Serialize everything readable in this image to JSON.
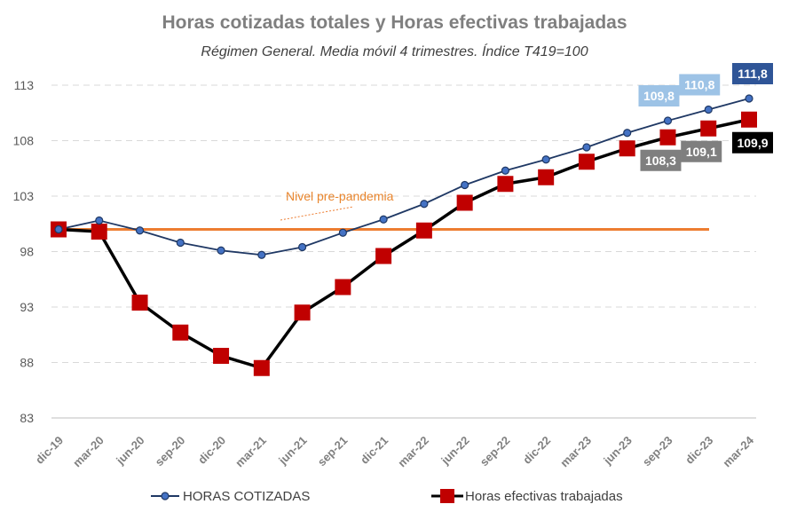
{
  "chart_data": {
    "type": "line",
    "title": "Horas cotizadas totales y Horas efectivas trabajadas",
    "subtitle": "Régimen General. Media móvil 4 trimestres. Índice T419=100",
    "categories": [
      "dic-19",
      "mar-20",
      "jun-20",
      "sep-20",
      "dic-20",
      "mar-21",
      "jun-21",
      "sep-21",
      "dic-21",
      "mar-22",
      "jun-22",
      "sep-22",
      "dic-22",
      "mar-23",
      "jun-23",
      "sep-23",
      "dic-23",
      "mar-24"
    ],
    "ylim": [
      83,
      113
    ],
    "yticks": [
      83,
      88,
      93,
      98,
      103,
      108,
      113
    ],
    "grid": true,
    "legend_position": "bottom",
    "series": [
      {
        "name": "HORAS COTIZADAS",
        "color": "#1f3864",
        "marker_fill": "#4472c4",
        "values": [
          100.0,
          100.8,
          99.9,
          98.8,
          98.1,
          97.7,
          98.4,
          99.7,
          100.9,
          102.3,
          104.0,
          105.3,
          106.3,
          107.4,
          108.7,
          109.8,
          110.8,
          111.8
        ]
      },
      {
        "name": "Horas efectivas trabajadas",
        "color": "#000000",
        "marker_fill": "#c00000",
        "values": [
          100.0,
          99.8,
          93.4,
          90.7,
          88.6,
          87.5,
          92.5,
          94.8,
          97.6,
          99.9,
          102.4,
          104.1,
          104.7,
          106.1,
          107.3,
          108.3,
          109.1,
          109.9
        ]
      }
    ],
    "reference_line": {
      "label": "Nivel pre-pandemia",
      "value": 100,
      "color": "#ed7d31"
    },
    "data_labels": [
      {
        "series": 0,
        "index": 15,
        "text": "109,8",
        "bg": "#9dc3e6"
      },
      {
        "series": 0,
        "index": 16,
        "text": "110,8",
        "bg": "#9dc3e6"
      },
      {
        "series": 0,
        "index": 17,
        "text": "111,8",
        "bg": "#2f5597"
      },
      {
        "series": 1,
        "index": 15,
        "text": "108,3",
        "bg": "#7f7f7f"
      },
      {
        "series": 1,
        "index": 16,
        "text": "109,1",
        "bg": "#7f7f7f"
      },
      {
        "series": 1,
        "index": 17,
        "text": "109,9",
        "bg": "#000000"
      }
    ]
  }
}
